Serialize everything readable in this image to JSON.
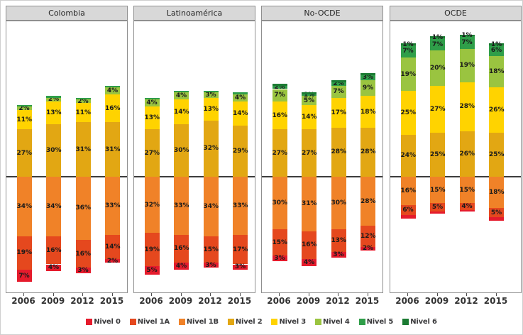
{
  "chart_data": {
    "type": "bar",
    "variant": "diverging_stacked_percent",
    "unit": "%",
    "categories": [
      "2006",
      "2009",
      "2012",
      "2015"
    ],
    "y_axis": {
      "shown": false,
      "baseline": 0
    },
    "grid": false,
    "legend": {
      "position": "bottom",
      "entries": [
        "Nivel 0",
        "Nivel 1A",
        "Nivel 1B",
        "Nivel 2",
        "Nivel 3",
        "Nivel 4",
        "Nivel 5",
        "Nivel 6"
      ]
    },
    "colors": {
      "Nivel 0": "#E51B2C",
      "Nivel 1A": "#E5481E",
      "Nivel 1B": "#F08228",
      "Nivel 2": "#E2A713",
      "Nivel 3": "#FFD300",
      "Nivel 4": "#9AC440",
      "Nivel 5": "#2F9E49",
      "Nivel 6": "#1C7B33"
    },
    "panels": [
      {
        "title": "Colombia",
        "above": [
          {
            "level": "Nivel 2",
            "values": [
              27,
              30,
              31,
              31
            ],
            "labels": [
              "27%",
              "30%",
              "31%",
              "31%"
            ]
          },
          {
            "level": "Nivel 3",
            "values": [
              11,
              13,
              11,
              16
            ],
            "labels": [
              "11%",
              "13%",
              "11%",
              "16%"
            ]
          },
          {
            "level": "Nivel 4",
            "values": [
              2,
              2,
              2,
              4
            ],
            "labels": [
              "2%",
              "2%",
              "2%",
              "4%"
            ]
          },
          {
            "level": "Nivel 5",
            "values": [
              1,
              1,
              1,
              1
            ],
            "labels": [
              "",
              "",
              "",
              ""
            ]
          }
        ],
        "below": [
          {
            "level": "Nivel 1B",
            "values": [
              34,
              34,
              36,
              33
            ],
            "labels": [
              "34%",
              "34%",
              "36%",
              "33%"
            ]
          },
          {
            "level": "Nivel 1A",
            "values": [
              19,
              16,
              16,
              14
            ],
            "labels": [
              "19%",
              "16%",
              "16%",
              "14%"
            ]
          },
          {
            "level": "Nivel 0",
            "values": [
              7,
              4,
              3,
              2
            ],
            "labels": [
              "7%",
              "4%",
              "3%",
              "2%"
            ]
          }
        ]
      },
      {
        "title": "Latinoamérica",
        "above": [
          {
            "level": "Nivel 2",
            "values": [
              27,
              30,
              32,
              29
            ],
            "labels": [
              "27%",
              "30%",
              "32%",
              "29%"
            ]
          },
          {
            "level": "Nivel 3",
            "values": [
              13,
              14,
              13,
              14
            ],
            "labels": [
              "13%",
              "14%",
              "13%",
              "14%"
            ]
          },
          {
            "level": "Nivel 4",
            "values": [
              4,
              4,
              3,
              4
            ],
            "labels": [
              "4%",
              "4%",
              "3%",
              "4%"
            ]
          },
          {
            "level": "Nivel 5",
            "values": [
              1,
              1,
              1,
              1
            ],
            "labels": [
              "",
              "",
              "",
              ""
            ]
          }
        ],
        "below": [
          {
            "level": "Nivel 1B",
            "values": [
              32,
              33,
              34,
              33
            ],
            "labels": [
              "32%",
              "33%",
              "34%",
              "33%"
            ]
          },
          {
            "level": "Nivel 1A",
            "values": [
              19,
              16,
              15,
              17
            ],
            "labels": [
              "19%",
              "16%",
              "15%",
              "17%"
            ]
          },
          {
            "level": "Nivel 0",
            "values": [
              5,
              4,
              3,
              3
            ],
            "labels": [
              "5%",
              "4%",
              "3%",
              "3%"
            ]
          }
        ]
      },
      {
        "title": "No-OCDE",
        "above": [
          {
            "level": "Nivel 2",
            "values": [
              27,
              27,
              28,
              28
            ],
            "labels": [
              "27%",
              "27%",
              "28%",
              "28%"
            ]
          },
          {
            "level": "Nivel 3",
            "values": [
              16,
              14,
              17,
              18
            ],
            "labels": [
              "16%",
              "14%",
              "17%",
              "18%"
            ]
          },
          {
            "level": "Nivel 4",
            "values": [
              7,
              5,
              7,
              9
            ],
            "labels": [
              "7%",
              "5%",
              "7%",
              "9%"
            ]
          },
          {
            "level": "Nivel 5",
            "values": [
              2,
              1,
              2,
              3
            ],
            "labels": [
              "2%",
              "1%",
              "2%",
              "3%"
            ]
          },
          {
            "level": "Nivel 6",
            "values": [
              1,
              1,
              1,
              1
            ],
            "labels": [
              "",
              "",
              "",
              ""
            ]
          }
        ],
        "below": [
          {
            "level": "Nivel 1B",
            "values": [
              30,
              31,
              30,
              28
            ],
            "labels": [
              "30%",
              "31%",
              "30%",
              "28%"
            ]
          },
          {
            "level": "Nivel 1A",
            "values": [
              15,
              16,
              13,
              12
            ],
            "labels": [
              "15%",
              "16%",
              "13%",
              "12%"
            ]
          },
          {
            "level": "Nivel 0",
            "values": [
              3,
              4,
              3,
              2
            ],
            "labels": [
              "3%",
              "4%",
              "3%",
              "2%"
            ]
          }
        ]
      },
      {
        "title": "OCDE",
        "above": [
          {
            "level": "Nivel 2",
            "values": [
              24,
              25,
              26,
              25
            ],
            "labels": [
              "24%",
              "25%",
              "26%",
              "25%"
            ]
          },
          {
            "level": "Nivel 3",
            "values": [
              25,
              27,
              28,
              26
            ],
            "labels": [
              "25%",
              "27%",
              "28%",
              "26%"
            ]
          },
          {
            "level": "Nivel 4",
            "values": [
              19,
              20,
              19,
              18
            ],
            "labels": [
              "19%",
              "20%",
              "19%",
              "18%"
            ]
          },
          {
            "level": "Nivel 5",
            "values": [
              7,
              7,
              7,
              6
            ],
            "labels": [
              "7%",
              "7%",
              "7%",
              "6%"
            ]
          },
          {
            "level": "Nivel 6",
            "values": [
              1,
              1,
              1,
              1
            ],
            "labels": [
              "1%",
              "1%",
              "1%",
              "1%"
            ]
          }
        ],
        "below": [
          {
            "level": "Nivel 1B",
            "values": [
              16,
              15,
              15,
              18
            ],
            "labels": [
              "16%",
              "15%",
              "15%",
              "18%"
            ]
          },
          {
            "level": "Nivel 1A",
            "values": [
              6,
              5,
              4,
              5
            ],
            "labels": [
              "6%",
              "5%",
              "4%",
              "5%"
            ]
          },
          {
            "level": "Nivel 0",
            "values": [
              2,
              1,
              1,
              2
            ],
            "labels": [
              "",
              "",
              "",
              ""
            ]
          }
        ]
      }
    ]
  }
}
